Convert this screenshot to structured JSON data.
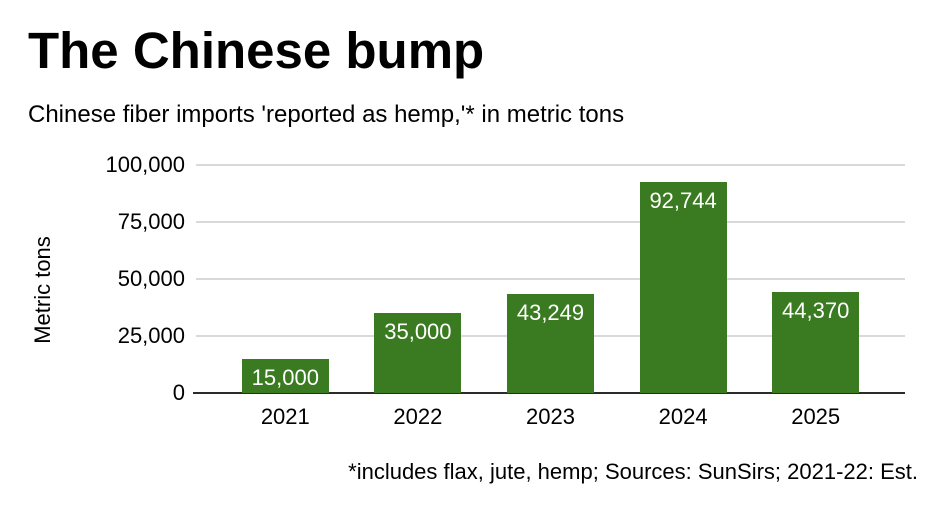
{
  "title": "The Chinese bump",
  "subtitle": "Chinese fiber imports 'reported as hemp,'* in metric tons",
  "footnote": "*includes flax, jute, hemp; Sources: SunSirs; 2021-22: Est.",
  "chart_data": {
    "type": "bar",
    "title": "The Chinese bump",
    "subtitle": "Chinese fiber imports 'reported as hemp,'* in metric tons",
    "categories": [
      "2021",
      "2022",
      "2023",
      "2024",
      "2025"
    ],
    "values": [
      15000,
      35000,
      43249,
      92744,
      44370
    ],
    "value_labels": [
      "15,000",
      "35,000",
      "43,249",
      "92,744",
      "44,370"
    ],
    "xlabel": "",
    "ylabel": "Metric tons",
    "ylim": [
      0,
      100000
    ],
    "yticks": [
      0,
      25000,
      50000,
      75000,
      100000
    ],
    "ytick_labels": [
      "0",
      "25,000",
      "50,000",
      "75,000",
      "100,000"
    ],
    "grid": true,
    "legend": "none",
    "bar_color": "#3a7a20",
    "bar_label_color": "#ffffff",
    "gridline_color": "#d9d9d9",
    "axis_line_color": "#2b2b2b",
    "text_color": "#000000",
    "footnote": "*includes flax, jute, hemp; Sources: SunSirs; 2021-22: Est."
  }
}
